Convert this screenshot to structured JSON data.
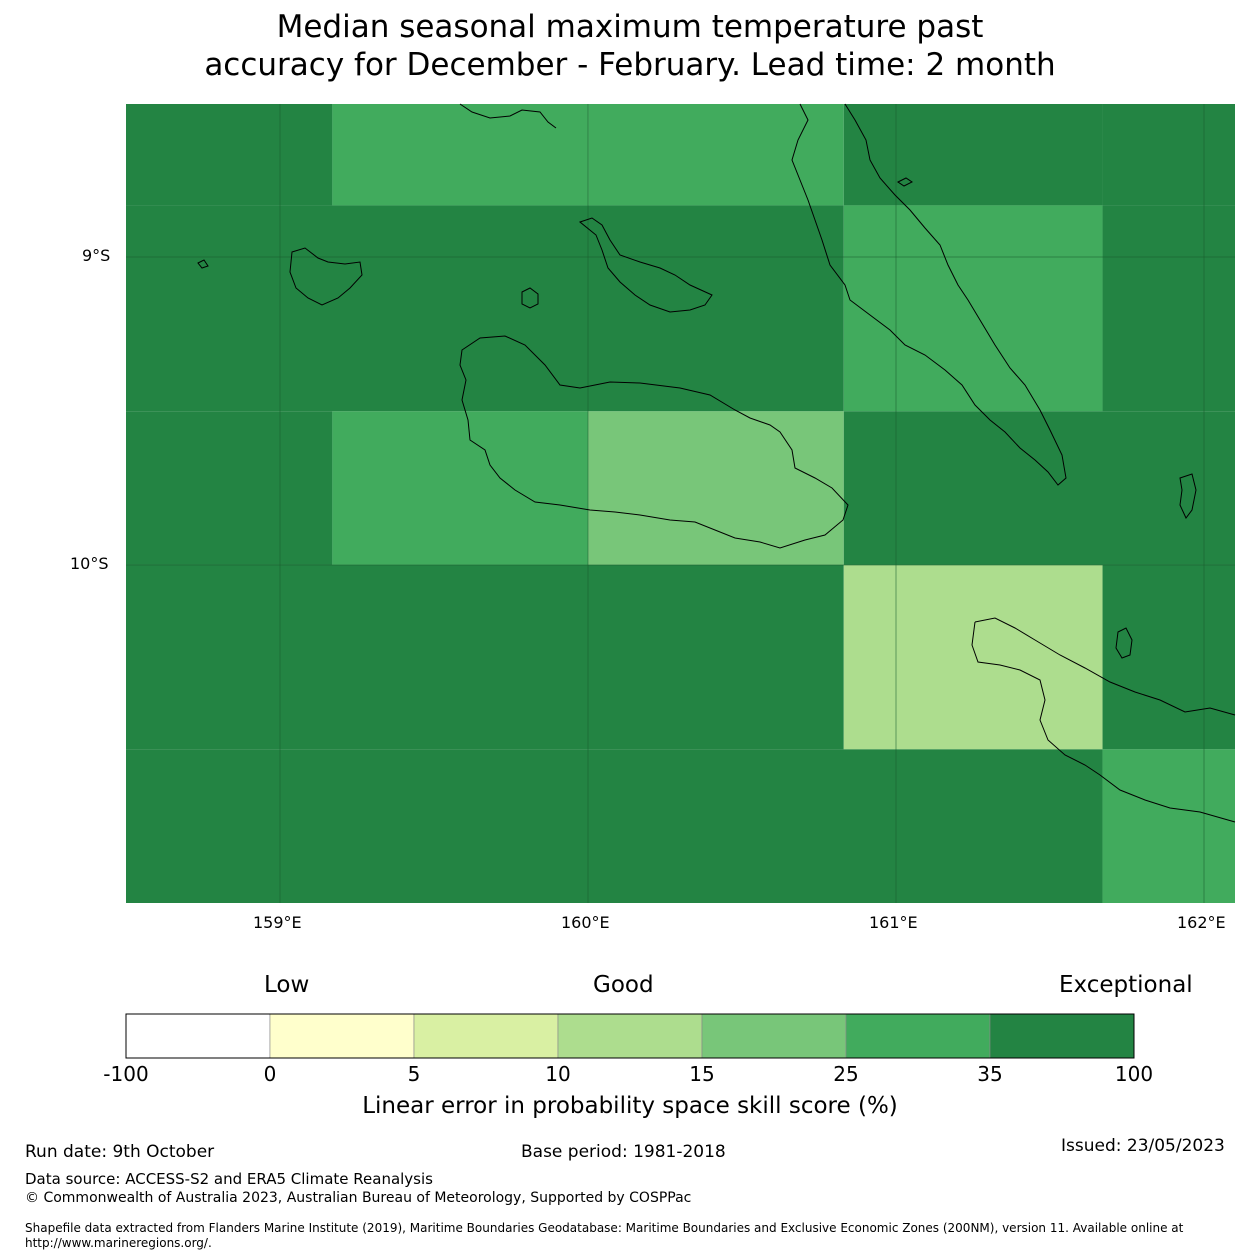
{
  "title": {
    "line1": "Median seasonal maximum temperature past",
    "line2": "accuracy for December - February. Lead time: 2 month"
  },
  "map": {
    "lat_labels": [
      "9°S",
      "10°S"
    ],
    "lon_labels": [
      "159°E",
      "160°E",
      "161°E",
      "162°E"
    ],
    "extent": {
      "lon_min": 158.5,
      "lon_max": 162.1,
      "lat_min": -11.1,
      "lat_max": -8.5
    },
    "cells": [
      {
        "lon0": 158.5,
        "lon1": 159.17,
        "lat0": -8.83,
        "lat1": -8.5,
        "class": "35-100"
      },
      {
        "lon0": 159.17,
        "lon1": 160.0,
        "lat0": -8.83,
        "lat1": -8.5,
        "class": "25-35"
      },
      {
        "lon0": 160.0,
        "lon1": 160.83,
        "lat0": -8.83,
        "lat1": -8.5,
        "class": "25-35"
      },
      {
        "lon0": 160.83,
        "lon1": 161.67,
        "lat0": -8.83,
        "lat1": -8.5,
        "class": "35-100"
      },
      {
        "lon0": 161.67,
        "lon1": 162.1,
        "lat0": -8.83,
        "lat1": -8.5,
        "class": "35-100"
      },
      {
        "lon0": 158.5,
        "lon1": 160.83,
        "lat0": -9.5,
        "lat1": -8.83,
        "class": "35-100"
      },
      {
        "lon0": 160.83,
        "lon1": 161.67,
        "lat0": -9.5,
        "lat1": -8.83,
        "class": "25-35"
      },
      {
        "lon0": 161.67,
        "lon1": 162.1,
        "lat0": -9.5,
        "lat1": -8.83,
        "class": "35-100"
      },
      {
        "lon0": 158.5,
        "lon1": 159.17,
        "lat0": -10.0,
        "lat1": -9.5,
        "class": "35-100"
      },
      {
        "lon0": 159.17,
        "lon1": 160.0,
        "lat0": -10.0,
        "lat1": -9.5,
        "class": "25-35"
      },
      {
        "lon0": 160.0,
        "lon1": 160.83,
        "lat0": -10.0,
        "lat1": -9.5,
        "class": "15-25"
      },
      {
        "lon0": 160.83,
        "lon1": 162.1,
        "lat0": -10.0,
        "lat1": -9.5,
        "class": "35-100"
      },
      {
        "lon0": 158.5,
        "lon1": 160.83,
        "lat0": -10.6,
        "lat1": -10.0,
        "class": "35-100"
      },
      {
        "lon0": 160.83,
        "lon1": 161.67,
        "lat0": -10.6,
        "lat1": -10.0,
        "class": "10-15"
      },
      {
        "lon0": 161.67,
        "lon1": 162.1,
        "lat0": -10.6,
        "lat1": -10.0,
        "class": "35-100"
      },
      {
        "lon0": 158.5,
        "lon1": 161.67,
        "lat0": -11.1,
        "lat1": -10.6,
        "class": "35-100"
      },
      {
        "lon0": 161.67,
        "lon1": 162.1,
        "lat0": -11.1,
        "lat1": -10.6,
        "class": "25-35"
      }
    ]
  },
  "legend": {
    "categories": [
      "Low",
      "Good",
      "Exceptional"
    ],
    "ticks": [
      "-100",
      "0",
      "5",
      "10",
      "15",
      "25",
      "35",
      "100"
    ],
    "colors": [
      "#ffffff",
      "#ffffcc",
      "#d9f0a3",
      "#addd8e",
      "#78c679",
      "#41ab5d",
      "#238443"
    ],
    "label": "Linear error in probability space skill score (%)"
  },
  "footer": {
    "run_date": "Run date: 9th October",
    "base_period": "Base period: 1981-2018",
    "issued": "Issued: 23/05/2023",
    "data_source": "Data source: ACCESS-S2 and ERA5 Climate Reanalysis",
    "copyright": "© Commonwealth of Australia 2023, Australian Bureau of Meteorology, Supported by COSPPac",
    "shapefile_line1": "Shapefile data extracted from Flanders Marine Institute (2019), Maritime Boundaries Geodatabase: Maritime Boundaries and Exclusive Economic Zones (200NM), version 11. Available online at",
    "shapefile_line2": "http://www.marineregions.org/."
  }
}
